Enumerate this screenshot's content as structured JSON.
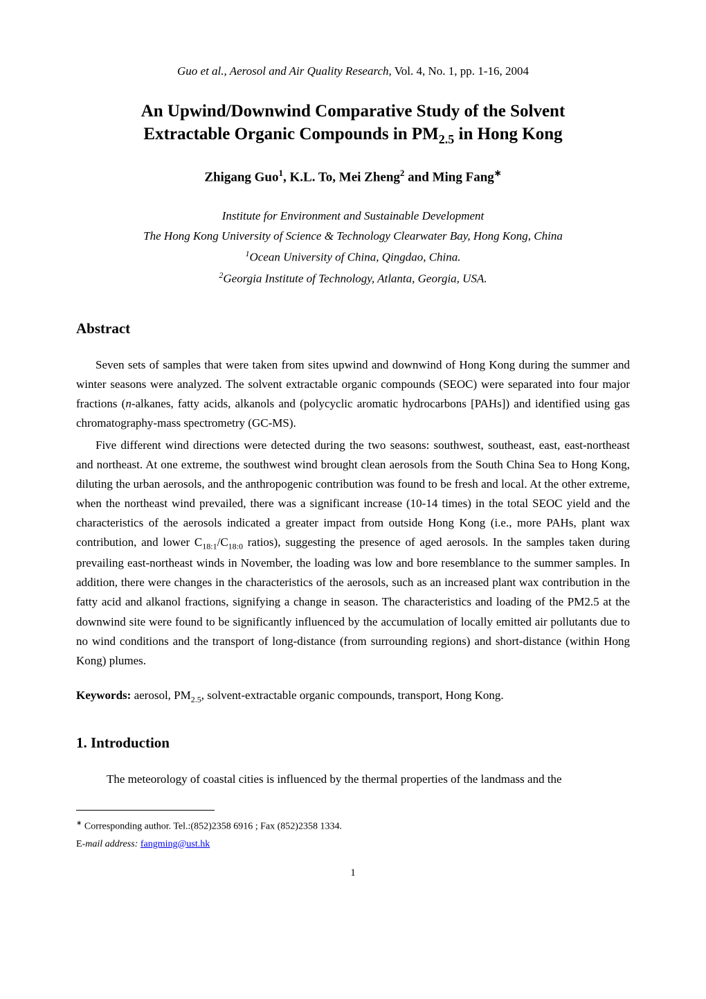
{
  "running_header": {
    "italic_part": "Guo et al., Aerosol and Air Quality Research,",
    "plain_part": " Vol. 4, No. 1, pp. 1-16, 2004"
  },
  "title": {
    "line1": "An Upwind/Downwind Comparative Study of the Solvent",
    "line2_pre": "Extractable Organic Compounds in PM",
    "line2_sub": "2.5",
    "line2_post": " in Hong Kong"
  },
  "authors": {
    "a1_name": "Zhigang Guo",
    "a1_sup": "1",
    "sep1": ", ",
    "a2_name": "K.L. To, Mei Zheng",
    "a2_sup": "2",
    "sep2": " and ",
    "a3_name": "Ming Fang",
    "a3_sup": "∗"
  },
  "affiliations": {
    "line1": "Institute for Environment and Sustainable Development",
    "line2": "The Hong Kong University of Science & Technology Clearwater Bay, Hong Kong, China",
    "line3_sup": "1",
    "line3": "Ocean University of China, Qingdao, China.",
    "line4_sup": "2",
    "line4": "Georgia Institute of Technology, Atlanta, Georgia, USA."
  },
  "abstract": {
    "heading": "Abstract",
    "p1_a": "Seven sets of samples that were taken from sites upwind and downwind of Hong Kong during the summer and winter seasons were analyzed. The solvent extractable organic compounds (SEOC) were separated into four major fractions (",
    "p1_italic": "n-",
    "p1_b": "alkanes, fatty acids, alkanols and (polycyclic aromatic hydrocarbons [PAHs]) and identified using gas chromatography-mass spectrometry (GC-MS).",
    "p2_a": "Five different wind directions were detected during the two seasons: southwest, southeast, east, east-northeast and northeast. At one extreme, the southwest wind brought clean aerosols from the South China Sea to Hong Kong, diluting the urban aerosols, and the anthropogenic contribution was found to be fresh and local. At the other extreme, when the northeast wind prevailed, there was a significant increase (10-14 times) in the total SEOC yield and the characteristics of the aerosols indicated a greater impact from outside Hong Kong (i.e., more PAHs, plant wax contribution, and lower C",
    "p2_sub1": "18:1",
    "p2_b": "/C",
    "p2_sub2": "18:0",
    "p2_c": " ratios), suggesting the presence of aged aerosols. In the samples taken during prevailing east-northeast winds in November, the loading was low and bore resemblance to the summer samples. In addition, there were changes in the characteristics of the aerosols, such as an increased plant wax contribution in the fatty acid and alkanol fractions, signifying a change in season. The characteristics and loading of the PM2.5 at the downwind site were found to be significantly influenced by the accumulation of locally emitted air pollutants due to no wind conditions and the transport of long-distance (from surrounding regions) and short-distance (within Hong Kong) plumes."
  },
  "keywords": {
    "label": "Keywords:",
    "text_a": " aerosol, PM",
    "sub": "2.5",
    "text_b": ", solvent-extractable organic compounds, transport, Hong Kong."
  },
  "introduction": {
    "heading": "1.  Introduction",
    "p1": "The meteorology of coastal cities is influenced by the thermal properties of the landmass and the"
  },
  "footnote": {
    "marker": "∗",
    "corr_text": " Corresponding author. Tel.:(852)2358 6916 ; Fax (852)2358 1334.",
    "email_label_a": "E",
    "email_label_b": "-mail address:",
    "email": "fangming@ust.hk"
  },
  "page_number": "1"
}
